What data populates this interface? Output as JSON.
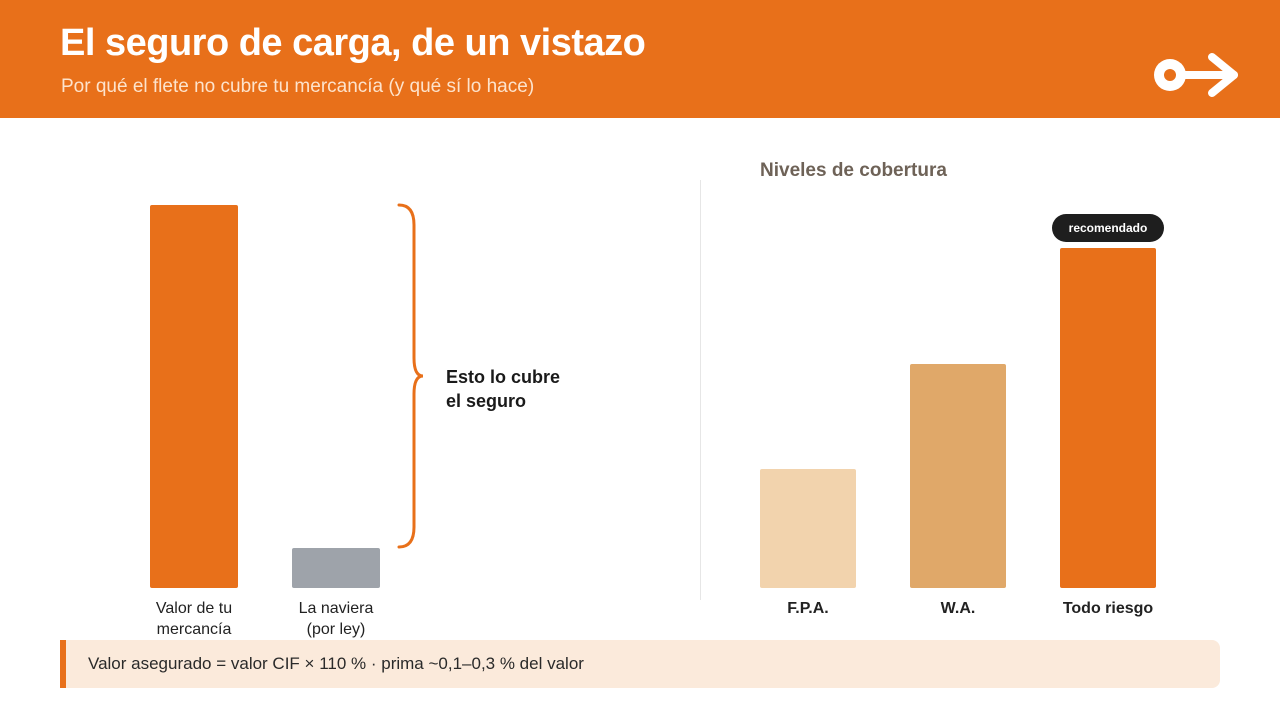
{
  "header": {
    "title": "El seguro de carga, de un vistazo",
    "subtitle": "Por qué el flete no cubre tu mercancía (y qué sí lo hace)",
    "logo_icon": "key-arrow-icon"
  },
  "chart_data": [
    {
      "type": "bar",
      "categories": [
        "Valor de tu\nmercancía",
        "La naviera\n(por ley)"
      ],
      "values": [
        100,
        10.5
      ],
      "ylim": [
        0,
        100
      ],
      "colors": [
        "#e8701a",
        "#9ea3aa"
      ],
      "annotation": "Esto lo cubre\nel seguro"
    },
    {
      "type": "bar",
      "title": "Niveles de cobertura",
      "categories": [
        "F.P.A.",
        "W.A.",
        "Todo riesgo"
      ],
      "values": [
        35,
        66,
        100
      ],
      "ylim": [
        0,
        100
      ],
      "colors": [
        "#f2d3ad",
        "#e0a869",
        "#e8701a"
      ],
      "badge": "recomendado"
    }
  ],
  "footnote": "Valor asegurado = valor CIF × 110 % · prima ~0,1–0,3 % del valor"
}
